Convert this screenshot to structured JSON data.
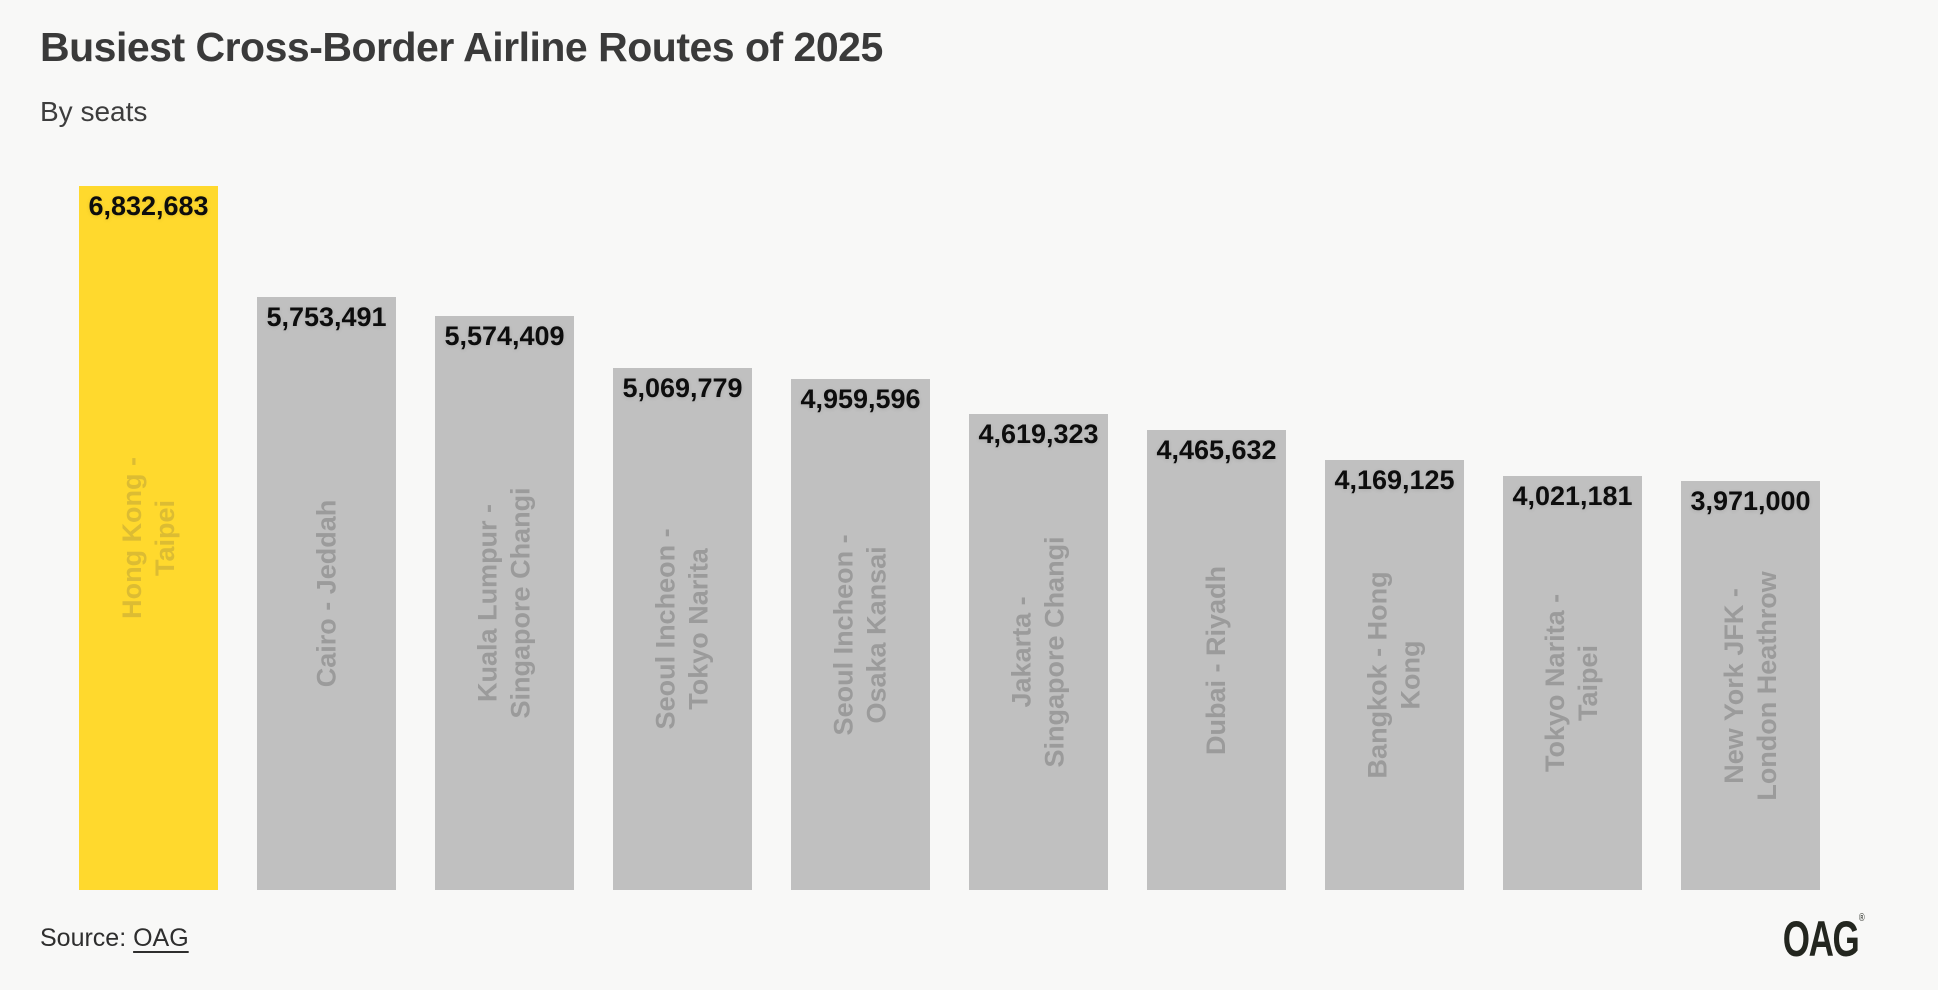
{
  "header": {
    "title": "Busiest Cross-Border Airline Routes of 2025",
    "subtitle": "By seats"
  },
  "chart_data": {
    "type": "bar",
    "orientation": "vertical",
    "title": "Busiest Cross-Border Airline Routes of 2025",
    "subtitle": "By seats",
    "xlabel": "",
    "ylabel": "Seats",
    "ylim": [
      0,
      6832683
    ],
    "grid": false,
    "legend": "none",
    "categories": [
      "Hong Kong - Taipei",
      "Cairo - Jeddah",
      "Kuala Lumpur - Singapore Changi",
      "Seoul Incheon - Tokyo Narita",
      "Seoul Incheon - Osaka Kansai",
      "Jakarta - Singapore Changi",
      "Dubai - Riyadh",
      "Bangkok - Hong Kong",
      "Tokyo Narita - Taipei",
      "New York JFK - London Heathrow"
    ],
    "category_label_lines": [
      [
        "Hong Kong -",
        "Taipei"
      ],
      [
        "Cairo - Jeddah"
      ],
      [
        "Kuala Lumpur -",
        "Singapore Changi"
      ],
      [
        "Seoul Incheon -",
        "Tokyo Narita"
      ],
      [
        "Seoul Incheon -",
        "Osaka Kansai"
      ],
      [
        "Jakarta -",
        "Singapore Changi"
      ],
      [
        "Dubai - Riyadh"
      ],
      [
        "Bangkok - Hong",
        "Kong"
      ],
      [
        "Tokyo Narita -",
        "Taipei"
      ],
      [
        "New York JFK -",
        "London Heathrow"
      ]
    ],
    "values": [
      6832683,
      5753491,
      5574409,
      5069779,
      4959596,
      4619323,
      4465632,
      4169125,
      4021181,
      3971000
    ],
    "value_labels": [
      "6,832,683",
      "5,753,491",
      "5,574,409",
      "5,069,779",
      "4,959,596",
      "4,619,323",
      "4,465,632",
      "4,169,125",
      "4,021,181",
      "3,971,000"
    ],
    "highlight_index": 0,
    "colors": {
      "bar_highlight": "#ffd92d",
      "bar_default": "#c0c0c0",
      "value_label": "#0d0d0d",
      "category_label_highlight": "#dcbc33",
      "category_label_default": "#9b9b9b",
      "background": "#f8f8f7"
    }
  },
  "footer": {
    "source_prefix": "Source: ",
    "source_link": "OAG",
    "logo_text": "OAG",
    "logo_mark": "®"
  }
}
